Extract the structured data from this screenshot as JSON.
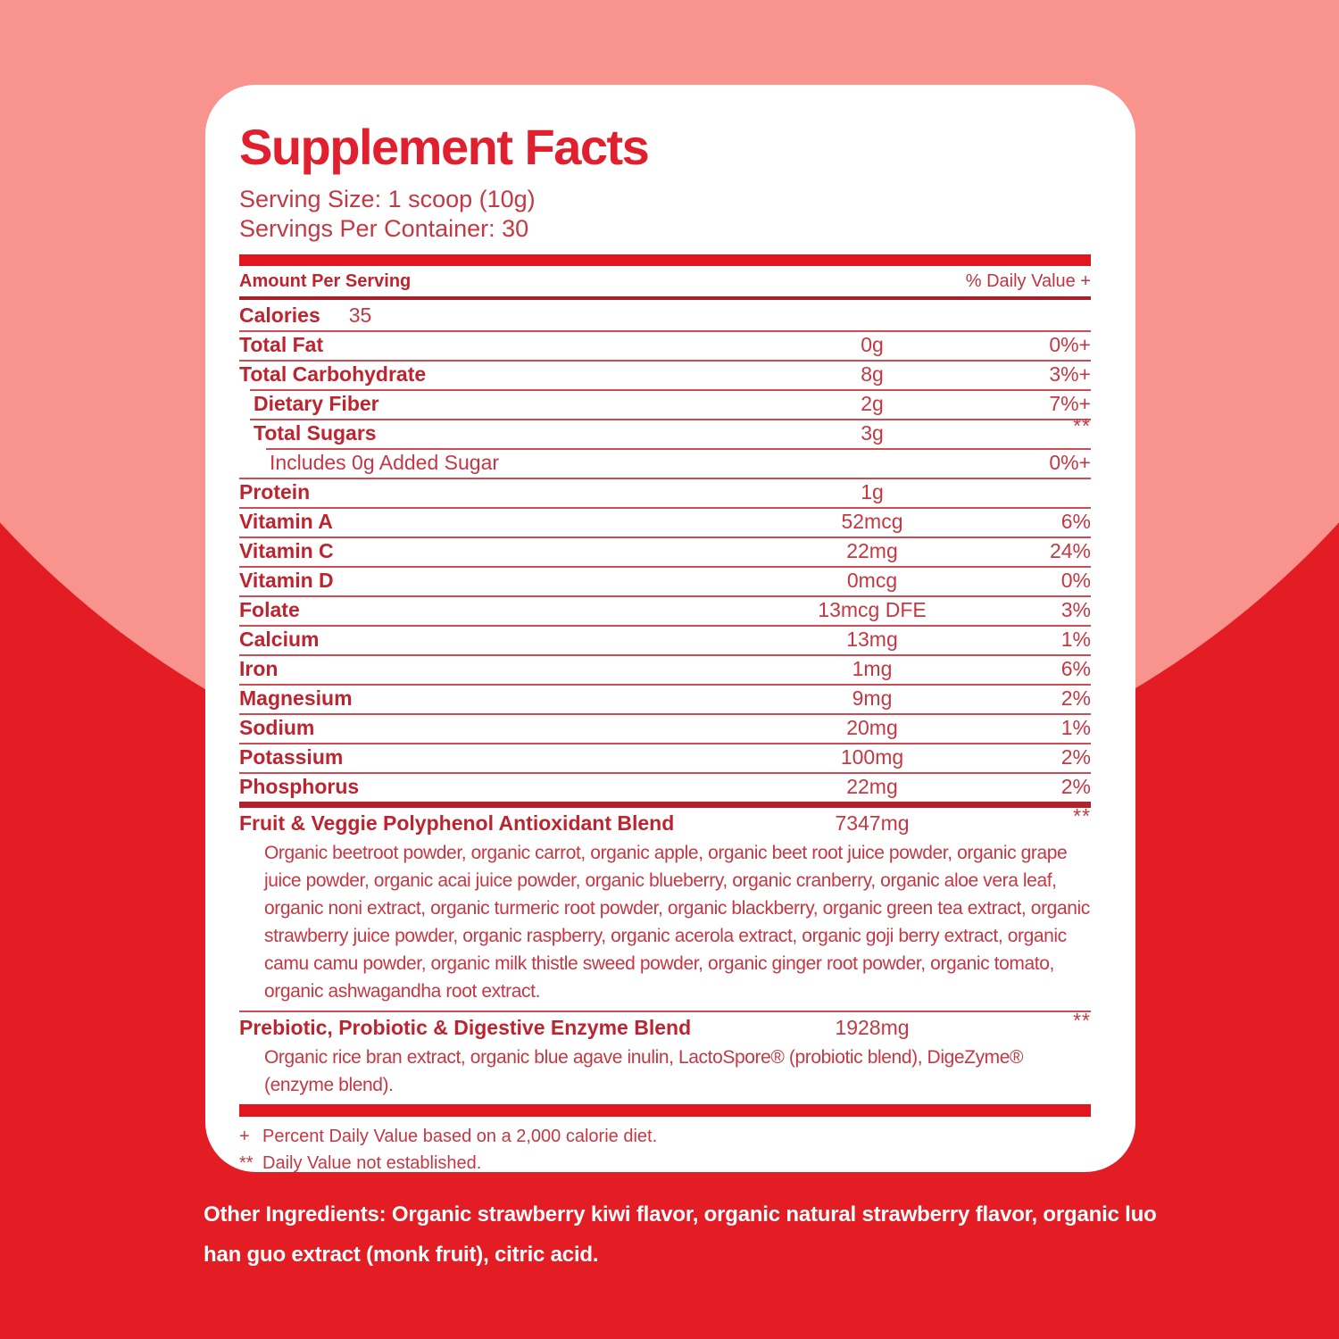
{
  "colors": {
    "background_red": "#e41d24",
    "background_pink": "#f8948d",
    "title_red": "#e0202e",
    "text_bold": "#bc2530",
    "text_regular": "#c43843",
    "bar_bright": "#e2161e"
  },
  "panel": {
    "title": "Supplement Facts",
    "serving_size_line": "Serving Size: 1 scoop (10g)",
    "servings_line": "Servings Per Container: 30",
    "header": {
      "amount_label": "Amount Per Serving",
      "dv_label": "% Daily Value +"
    },
    "calories": {
      "label": "Calories",
      "value": "35"
    },
    "rows": [
      {
        "label": "Total Fat",
        "amount": "0g",
        "dv": "0%+",
        "level": 0,
        "plain": false
      },
      {
        "label": "Total Carbohydrate",
        "amount": "8g",
        "dv": "3%+",
        "level": 0,
        "plain": false
      },
      {
        "label": "Dietary Fiber",
        "amount": "2g",
        "dv": "7%+",
        "level": 1,
        "plain": false
      },
      {
        "label": "Total Sugars",
        "amount": "3g",
        "dv": "**",
        "level": 1,
        "plain": false
      },
      {
        "label": "Includes 0g Added Sugar",
        "amount": "",
        "dv": "0%+",
        "level": 2,
        "plain": true
      },
      {
        "label": "Protein",
        "amount": "1g",
        "dv": "",
        "level": 0,
        "plain": false
      },
      {
        "label": "Vitamin A",
        "amount": "52mcg",
        "dv": "6%",
        "level": 0,
        "plain": false
      },
      {
        "label": "Vitamin C",
        "amount": "22mg",
        "dv": "24%",
        "level": 0,
        "plain": false
      },
      {
        "label": "Vitamin D",
        "amount": "0mcg",
        "dv": "0%",
        "level": 0,
        "plain": false
      },
      {
        "label": "Folate",
        "amount": "13mcg DFE",
        "dv": "3%",
        "level": 0,
        "plain": false
      },
      {
        "label": "Calcium",
        "amount": "13mg",
        "dv": "1%",
        "level": 0,
        "plain": false
      },
      {
        "label": "Iron",
        "amount": "1mg",
        "dv": "6%",
        "level": 0,
        "plain": false
      },
      {
        "label": "Magnesium",
        "amount": "9mg",
        "dv": "2%",
        "level": 0,
        "plain": false
      },
      {
        "label": "Sodium",
        "amount": "20mg",
        "dv": "1%",
        "level": 0,
        "plain": false
      },
      {
        "label": "Potassium",
        "amount": "100mg",
        "dv": "2%",
        "level": 0,
        "plain": false
      },
      {
        "label": "Phosphorus",
        "amount": "22mg",
        "dv": "2%",
        "level": 0,
        "plain": false
      }
    ],
    "blends": [
      {
        "name": "Fruit & Veggie Polyphenol Antioxidant Blend",
        "amount": "7347mg",
        "dv": "**",
        "description": "Organic beetroot powder, organic carrot, organic apple, organic beet root juice powder, organic grape juice powder, organic acai juice powder, organic blueberry, organic cranberry, organic aloe vera leaf, organic noni extract, organic turmeric root powder, organic blackberry, organic green tea extract, organic strawberry juice powder, organic raspberry, organic acerola extract, organic goji berry extract, organic camu camu powder, organic milk thistle sweed powder, organic ginger root powder, organic tomato, organic ashwagandha root extract."
      },
      {
        "name": "Prebiotic, Probiotic & Digestive Enzyme Blend",
        "amount": "1928mg",
        "dv": "**",
        "description": "Organic rice bran extract, organic blue agave inulin, LactoSpore® (probiotic blend), DigeZyme® (enzyme blend)."
      }
    ],
    "footnotes": [
      {
        "marker": "+",
        "text": "Percent Daily Value based on a 2,000 calorie diet."
      },
      {
        "marker": "**",
        "text": "Daily Value not established."
      }
    ]
  },
  "other_ingredients": {
    "label": "Other Ingredients:",
    "text": " Organic strawberry kiwi flavor, organic natural strawberry flavor, organic luo han guo extract (monk fruit), citric acid."
  }
}
